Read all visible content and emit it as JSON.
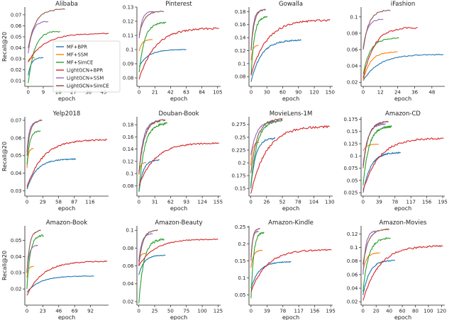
{
  "figure": {
    "ylabel": "Recall@20",
    "xlabel": "epoch"
  },
  "legend": [
    {
      "name": "MF+BPR",
      "color": "#1f77b4"
    },
    {
      "name": "MF+SSM",
      "color": "#ff7f0e"
    },
    {
      "name": "MF+SimCE",
      "color": "#2ca02c"
    },
    {
      "name": "LightGCN+BPR",
      "color": "#d62728"
    },
    {
      "name": "LightGCN+SSM",
      "color": "#9467bd"
    },
    {
      "name": "LightGCN+SimCE",
      "color": "#8c564b"
    }
  ],
  "chart_data": [
    {
      "type": "line",
      "title": "Alibaba",
      "xlabel": "epoch",
      "ylabel": "Recall@20",
      "xlim": [
        -2,
        48
      ],
      "ylim": [
        0.005,
        0.077
      ],
      "xticks": [
        0,
        9,
        18,
        27,
        36,
        45
      ],
      "yticks": [
        0.01,
        0.02,
        0.03,
        0.04,
        0.05,
        0.06,
        0.07
      ],
      "series": [
        {
          "name": "MF+BPR",
          "end": 9,
          "y0": 0.015,
          "y1": 0.031,
          "values": [
            0.015,
            0.025,
            0.029,
            0.031
          ]
        },
        {
          "name": "MF+SSM",
          "end": 4,
          "y0": 0.028,
          "y1": 0.031
        },
        {
          "name": "MF+SimCE",
          "end": 19,
          "y0": 0.008,
          "y1": 0.055
        },
        {
          "name": "LightGCN+BPR",
          "end": 48,
          "y0": 0.027,
          "y1": 0.053
        },
        {
          "name": "LightGCN+SSM",
          "end": 12,
          "y0": 0.035,
          "y1": 0.064
        },
        {
          "name": "LightGCN+SimCE",
          "end": 22,
          "y0": 0.04,
          "y1": 0.075
        }
      ]
    },
    {
      "type": "line",
      "title": "Pinterest",
      "xlabel": "epoch",
      "ylabel": "",
      "xlim": [
        -3,
        109
      ],
      "ylim": [
        0.074,
        0.13
      ],
      "xticks": [
        0,
        21,
        42,
        63,
        84,
        105
      ],
      "yticks": [
        0.08,
        0.09,
        0.1,
        0.11,
        0.12,
        0.13
      ],
      "series": [
        {
          "name": "MF+BPR",
          "end": 63,
          "y0": 0.088,
          "y1": 0.1
        },
        {
          "name": "MF+SSM",
          "end": 18,
          "y0": 0.099,
          "y1": 0.107
        },
        {
          "name": "MF+SimCE",
          "end": 36,
          "y0": 0.084,
          "y1": 0.119
        },
        {
          "name": "LightGCN+BPR",
          "end": 107,
          "y0": 0.079,
          "y1": 0.115
        },
        {
          "name": "LightGCN+SSM",
          "end": 20,
          "y0": 0.108,
          "y1": 0.127
        },
        {
          "name": "LightGCN+SimCE",
          "end": 33,
          "y0": 0.11,
          "y1": 0.127
        }
      ]
    },
    {
      "type": "line",
      "title": "Gowalla",
      "xlabel": "epoch",
      "ylabel": "",
      "xlim": [
        -4,
        155
      ],
      "ylim": [
        0.065,
        0.187
      ],
      "xticks": [
        0,
        30,
        60,
        90,
        120,
        150
      ],
      "yticks": [
        0.08,
        0.1,
        0.12,
        0.14,
        0.16,
        0.18
      ],
      "series": [
        {
          "name": "MF+BPR",
          "end": 95,
          "y0": 0.072,
          "y1": 0.136
        },
        {
          "name": "MF+SSM",
          "end": 14,
          "y0": 0.105,
          "y1": 0.128
        },
        {
          "name": "MF+SimCE",
          "end": 31,
          "y0": 0.082,
          "y1": 0.172
        },
        {
          "name": "LightGCN+BPR",
          "end": 150,
          "y0": 0.082,
          "y1": 0.167
        },
        {
          "name": "LightGCN+SSM",
          "end": 22,
          "y0": 0.12,
          "y1": 0.182
        },
        {
          "name": "LightGCN+SimCE",
          "end": 28,
          "y0": 0.12,
          "y1": 0.183
        }
      ]
    },
    {
      "type": "line",
      "title": "iFashion",
      "xlabel": "epoch",
      "ylabel": "",
      "xlim": [
        -1.5,
        57
      ],
      "ylim": [
        0.015,
        0.112
      ],
      "xticks": [
        0,
        12,
        24,
        36,
        48
      ],
      "yticks": [
        0.02,
        0.04,
        0.06,
        0.08,
        0.1
      ],
      "series": [
        {
          "name": "MF+BPR",
          "end": 56,
          "y0": 0.022,
          "y1": 0.054
        },
        {
          "name": "MF+SSM",
          "end": 24,
          "y0": 0.022,
          "y1": 0.057
        },
        {
          "name": "MF+SimCE",
          "end": 25,
          "y0": 0.03,
          "y1": 0.074
        },
        {
          "name": "LightGCN+BPR",
          "end": 38,
          "y0": 0.025,
          "y1": 0.087
        },
        {
          "name": "LightGCN+SSM",
          "end": 14,
          "y0": 0.062,
          "y1": 0.097
        },
        {
          "name": "LightGCN+SimCE",
          "end": 19,
          "y0": 0.06,
          "y1": 0.108
        }
      ]
    },
    {
      "type": "line",
      "title": "Yelp2018",
      "xlabel": "epoch",
      "ylabel": "Recall@20",
      "xlim": [
        -4,
        150
      ],
      "ylim": [
        0.027,
        0.072
      ],
      "xticks": [
        0,
        29,
        58,
        87,
        116
      ],
      "yticks": [
        0.03,
        0.04,
        0.05,
        0.06,
        0.07
      ],
      "series": [
        {
          "name": "MF+BPR",
          "end": 90,
          "y0": 0.031,
          "y1": 0.048
        },
        {
          "name": "MF+SSM",
          "end": 12,
          "y0": 0.043,
          "y1": 0.054
        },
        {
          "name": "MF+SimCE",
          "end": 25,
          "y0": 0.045,
          "y1": 0.064
        },
        {
          "name": "LightGCN+BPR",
          "end": 147,
          "y0": 0.032,
          "y1": 0.059
        },
        {
          "name": "LightGCN+SSM",
          "end": 20,
          "y0": 0.052,
          "y1": 0.069
        },
        {
          "name": "LightGCN+SimCE",
          "end": 28,
          "y0": 0.05,
          "y1": 0.07
        }
      ]
    },
    {
      "type": "line",
      "title": "Douban-Book",
      "xlabel": "epoch",
      "ylabel": "",
      "xlim": [
        -4,
        160
      ],
      "ylim": [
        0.063,
        0.193
      ],
      "xticks": [
        0,
        31,
        62,
        93,
        124,
        155
      ],
      "yticks": [
        0.08,
        0.1,
        0.12,
        0.14,
        0.16,
        0.18
      ],
      "series": [
        {
          "name": "MF+BPR",
          "end": 40,
          "y0": 0.07,
          "y1": 0.122
        },
        {
          "name": "MF+SSM",
          "end": 14,
          "y0": 0.098,
          "y1": 0.118
        },
        {
          "name": "MF+SimCE",
          "end": 55,
          "y0": 0.072,
          "y1": 0.182
        },
        {
          "name": "LightGCN+BPR",
          "end": 157,
          "y0": 0.08,
          "y1": 0.15
        },
        {
          "name": "LightGCN+SSM",
          "end": 42,
          "y0": 0.1,
          "y1": 0.186
        },
        {
          "name": "LightGCN+SimCE",
          "end": 52,
          "y0": 0.1,
          "y1": 0.188
        }
      ]
    },
    {
      "type": "line",
      "title": "MovieLens-1M",
      "xlabel": "epoch",
      "ylabel": "",
      "xlim": [
        -3,
        135
      ],
      "ylim": [
        0.135,
        0.29
      ],
      "xticks": [
        0,
        26,
        52,
        78,
        104,
        130
      ],
      "yticks": [
        0.15,
        0.175,
        0.2,
        0.225,
        0.25,
        0.275
      ],
      "series": [
        {
          "name": "MF+BPR",
          "end": 40,
          "y0": 0.15,
          "y1": 0.248
        },
        {
          "name": "MF+SSM",
          "end": 14,
          "y0": 0.195,
          "y1": 0.24
        },
        {
          "name": "MF+SimCE",
          "end": 52,
          "y0": 0.155,
          "y1": 0.282
        },
        {
          "name": "LightGCN+BPR",
          "end": 130,
          "y0": 0.14,
          "y1": 0.271
        },
        {
          "name": "LightGCN+SSM",
          "end": 48,
          "y0": 0.215,
          "y1": 0.282
        },
        {
          "name": "LightGCN+SimCE",
          "end": 52,
          "y0": 0.18,
          "y1": 0.285
        }
      ]
    },
    {
      "type": "line",
      "title": "Amazon-CD",
      "xlabel": "epoch",
      "ylabel": "",
      "xlim": [
        -5,
        200
      ],
      "ylim": [
        0.018,
        0.18
      ],
      "xticks": [
        0,
        39,
        78,
        117,
        156,
        195
      ],
      "yticks": [
        0.025,
        0.05,
        0.075,
        0.1,
        0.125,
        0.15,
        0.175
      ],
      "series": [
        {
          "name": "MF+BPR",
          "end": 92,
          "y0": 0.025,
          "y1": 0.107
        },
        {
          "name": "MF+SSM",
          "end": 38,
          "y0": 0.11,
          "y1": 0.124
        },
        {
          "name": "MF+SimCE",
          "end": 70,
          "y0": 0.04,
          "y1": 0.16
        },
        {
          "name": "LightGCN+BPR",
          "end": 197,
          "y0": 0.03,
          "y1": 0.136
        },
        {
          "name": "LightGCN+SSM",
          "end": 55,
          "y0": 0.08,
          "y1": 0.165
        },
        {
          "name": "LightGCN+SimCE",
          "end": 62,
          "y0": 0.075,
          "y1": 0.17
        }
      ]
    },
    {
      "type": "line",
      "title": "Amazon-Book",
      "xlabel": "epoch",
      "ylabel": "Recall@20",
      "xlim": [
        -3,
        118
      ],
      "ylim": [
        0.01,
        0.059
      ],
      "xticks": [
        0,
        23,
        46,
        69,
        92
      ],
      "yticks": [
        0.02,
        0.03,
        0.04,
        0.05
      ],
      "series": [
        {
          "name": "MF+BPR",
          "end": 97,
          "y0": 0.018,
          "y1": 0.028
        },
        {
          "name": "MF+SSM",
          "end": 10,
          "y0": 0.027,
          "y1": 0.034
        },
        {
          "name": "MF+SimCE",
          "end": 24,
          "y0": 0.02,
          "y1": 0.053
        },
        {
          "name": "LightGCN+BPR",
          "end": 116,
          "y0": 0.016,
          "y1": 0.037
        },
        {
          "name": "LightGCN+SSM",
          "end": 16,
          "y0": 0.03,
          "y1": 0.047
        },
        {
          "name": "LightGCN+SimCE",
          "end": 20,
          "y0": 0.03,
          "y1": 0.056
        }
      ]
    },
    {
      "type": "line",
      "title": "Amazon-Beauty",
      "xlabel": "epoch",
      "ylabel": "",
      "xlim": [
        -3,
        129
      ],
      "ylim": [
        0.016,
        0.105
      ],
      "xticks": [
        0,
        25,
        50,
        75,
        100,
        125
      ],
      "yticks": [
        0.02,
        0.04,
        0.06,
        0.08,
        0.1
      ],
      "series": [
        {
          "name": "MF+BPR",
          "end": 42,
          "y0": 0.05,
          "y1": 0.072
        },
        {
          "name": "MF+SSM",
          "end": 12,
          "y0": 0.065,
          "y1": 0.074
        },
        {
          "name": "MF+SimCE",
          "end": 40,
          "y0": 0.018,
          "y1": 0.09
        },
        {
          "name": "LightGCN+BPR",
          "end": 125,
          "y0": 0.06,
          "y1": 0.09
        },
        {
          "name": "LightGCN+SSM",
          "end": 22,
          "y0": 0.065,
          "y1": 0.096
        },
        {
          "name": "LightGCN+SimCE",
          "end": 30,
          "y0": 0.06,
          "y1": 0.1
        }
      ]
    },
    {
      "type": "line",
      "title": "Amazon-Kindle",
      "xlabel": "epoch",
      "ylabel": "",
      "xlim": [
        -5,
        200
      ],
      "ylim": [
        0.02,
        0.253
      ],
      "xticks": [
        0,
        39,
        78,
        117,
        156,
        195
      ],
      "yticks": [
        0.05,
        0.1,
        0.15,
        0.2,
        0.25
      ],
      "series": [
        {
          "name": "MF+BPR",
          "end": 98,
          "y0": 0.07,
          "y1": 0.147
        },
        {
          "name": "MF+SSM",
          "end": 28,
          "y0": 0.13,
          "y1": 0.181
        },
        {
          "name": "MF+SimCE",
          "end": 32,
          "y0": 0.04,
          "y1": 0.235
        },
        {
          "name": "LightGCN+BPR",
          "end": 197,
          "y0": 0.06,
          "y1": 0.183
        },
        {
          "name": "LightGCN+SSM",
          "end": 18,
          "y0": 0.15,
          "y1": 0.237
        },
        {
          "name": "LightGCN+SimCE",
          "end": 22,
          "y0": 0.16,
          "y1": 0.245
        }
      ]
    },
    {
      "type": "line",
      "title": "Amazon-Movies",
      "xlabel": "epoch",
      "ylabel": "",
      "xlim": [
        -3,
        125
      ],
      "ylim": [
        0.015,
        0.132
      ],
      "xticks": [
        0,
        20,
        40,
        60,
        80,
        100,
        120
      ],
      "yticks": [
        0.02,
        0.04,
        0.06,
        0.08,
        0.1,
        0.12
      ],
      "series": [
        {
          "name": "MF+BPR",
          "end": 49,
          "y0": 0.03,
          "y1": 0.081
        },
        {
          "name": "MF+SSM",
          "end": 26,
          "y0": 0.065,
          "y1": 0.092
        },
        {
          "name": "MF+SimCE",
          "end": 42,
          "y0": 0.035,
          "y1": 0.114
        },
        {
          "name": "LightGCN+BPR",
          "end": 122,
          "y0": 0.022,
          "y1": 0.102
        },
        {
          "name": "LightGCN+SSM",
          "end": 20,
          "y0": 0.06,
          "y1": 0.124
        },
        {
          "name": "LightGCN+SimCE",
          "end": 40,
          "y0": 0.075,
          "y1": 0.127
        }
      ]
    }
  ]
}
